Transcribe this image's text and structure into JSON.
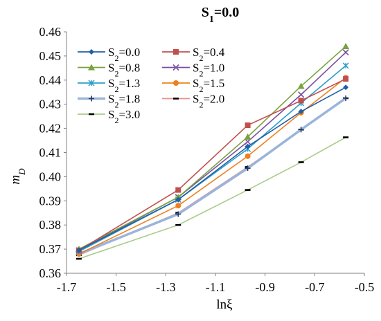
{
  "chart_data": {
    "type": "line",
    "title": "S₁=0.0",
    "xlabel": "lnξ",
    "ylabel": "m_D",
    "xlim": [
      -1.7,
      -0.5
    ],
    "ylim": [
      0.36,
      0.46
    ],
    "xticks": [
      "-1.7",
      "-1.5",
      "-1.3",
      "-1.1",
      "-0.9",
      "-0.7",
      "-0.5"
    ],
    "yticks": [
      "0.36",
      "0.37",
      "0.38",
      "0.39",
      "0.40",
      "0.41",
      "0.42",
      "0.43",
      "0.44",
      "0.45",
      "0.46"
    ],
    "x": [
      -1.65,
      -1.25,
      -0.97,
      -0.755,
      -0.575
    ],
    "grid": false,
    "legend_position": "top-left",
    "series": [
      {
        "name": "S₂=0.0",
        "color": "#1f5fa8",
        "marker": "diamond",
        "values": [
          0.3695,
          0.3905,
          0.4125,
          0.427,
          0.437
        ]
      },
      {
        "name": "S₂=0.4",
        "color": "#c0504d",
        "marker": "square",
        "values": [
          0.3695,
          0.3945,
          0.4213,
          0.4315,
          0.4405
        ]
      },
      {
        "name": "S₂=0.8",
        "color": "#77a33c",
        "marker": "triangle",
        "values": [
          0.37,
          0.3915,
          0.4165,
          0.4375,
          0.454
        ]
      },
      {
        "name": "S₂=1.0",
        "color": "#7a4f9e",
        "marker": "x",
        "values": [
          0.3695,
          0.3915,
          0.4145,
          0.434,
          0.4515
        ]
      },
      {
        "name": "S₂=1.3",
        "color": "#2c9ec9",
        "marker": "asterisk",
        "values": [
          0.369,
          0.3905,
          0.4115,
          0.4305,
          0.446
        ]
      },
      {
        "name": "S₂=1.5",
        "color": "#f07f1e",
        "marker": "circle",
        "values": [
          0.368,
          0.388,
          0.4085,
          0.4265,
          0.441
        ]
      },
      {
        "name": "S₂=1.8",
        "color": "#9bb4d9",
        "marker": "plus",
        "values": [
          0.368,
          0.3845,
          0.4035,
          0.4195,
          0.4325
        ]
      },
      {
        "name": "S₂=2.0",
        "color": "#e8918f",
        "marker": "dash",
        "values": [
          0.3675,
          0.385,
          0.404,
          0.4195,
          0.4325
        ]
      },
      {
        "name": "S₂=3.0",
        "color": "#a9cc8a",
        "marker": "dash",
        "values": [
          0.366,
          0.38,
          0.3945,
          0.406,
          0.4163
        ]
      }
    ]
  }
}
